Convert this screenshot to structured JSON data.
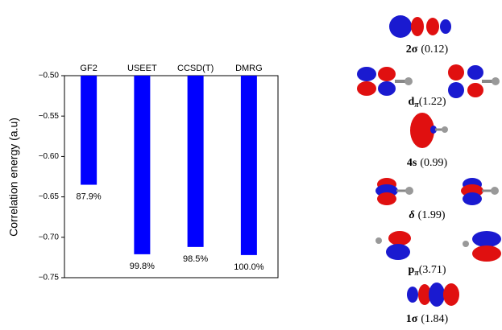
{
  "chart_data": {
    "type": "bar",
    "y_label": "Correlation energy (a.u)",
    "categories": [
      "GF2",
      "USEET",
      "CCSD(T)",
      "DMRG"
    ],
    "values": [
      -0.635,
      -0.721,
      -0.712,
      -0.722
    ],
    "annotations": [
      "87.9%",
      "99.8%",
      "98.5%",
      "100.0%"
    ],
    "color": "#0000ff",
    "ylim": [
      -0.75,
      -0.5
    ],
    "yticks": [
      {
        "value": -0.5,
        "label": "−0.50"
      },
      {
        "value": -0.55,
        "label": "−0.55"
      },
      {
        "value": -0.6,
        "label": "−0.60"
      },
      {
        "value": -0.65,
        "label": "−0.65"
      },
      {
        "value": -0.7,
        "label": "−0.70"
      },
      {
        "value": -0.75,
        "label": "−0.75"
      }
    ],
    "grid": false
  },
  "orbitals": [
    {
      "symbol": "2σ",
      "sub": "",
      "occupation": "(0.12)"
    },
    {
      "symbol": "d",
      "sub": "π",
      "occupation": "(1.22)"
    },
    {
      "symbol": "4s",
      "sub": "",
      "occupation": "(0.99)"
    },
    {
      "symbol": "δ",
      "sub": "",
      "occupation": "(1.99)"
    },
    {
      "symbol": "p",
      "sub": "π",
      "occupation": "(3.71)"
    },
    {
      "symbol": "1σ",
      "sub": "",
      "occupation": "(1.84)"
    }
  ]
}
